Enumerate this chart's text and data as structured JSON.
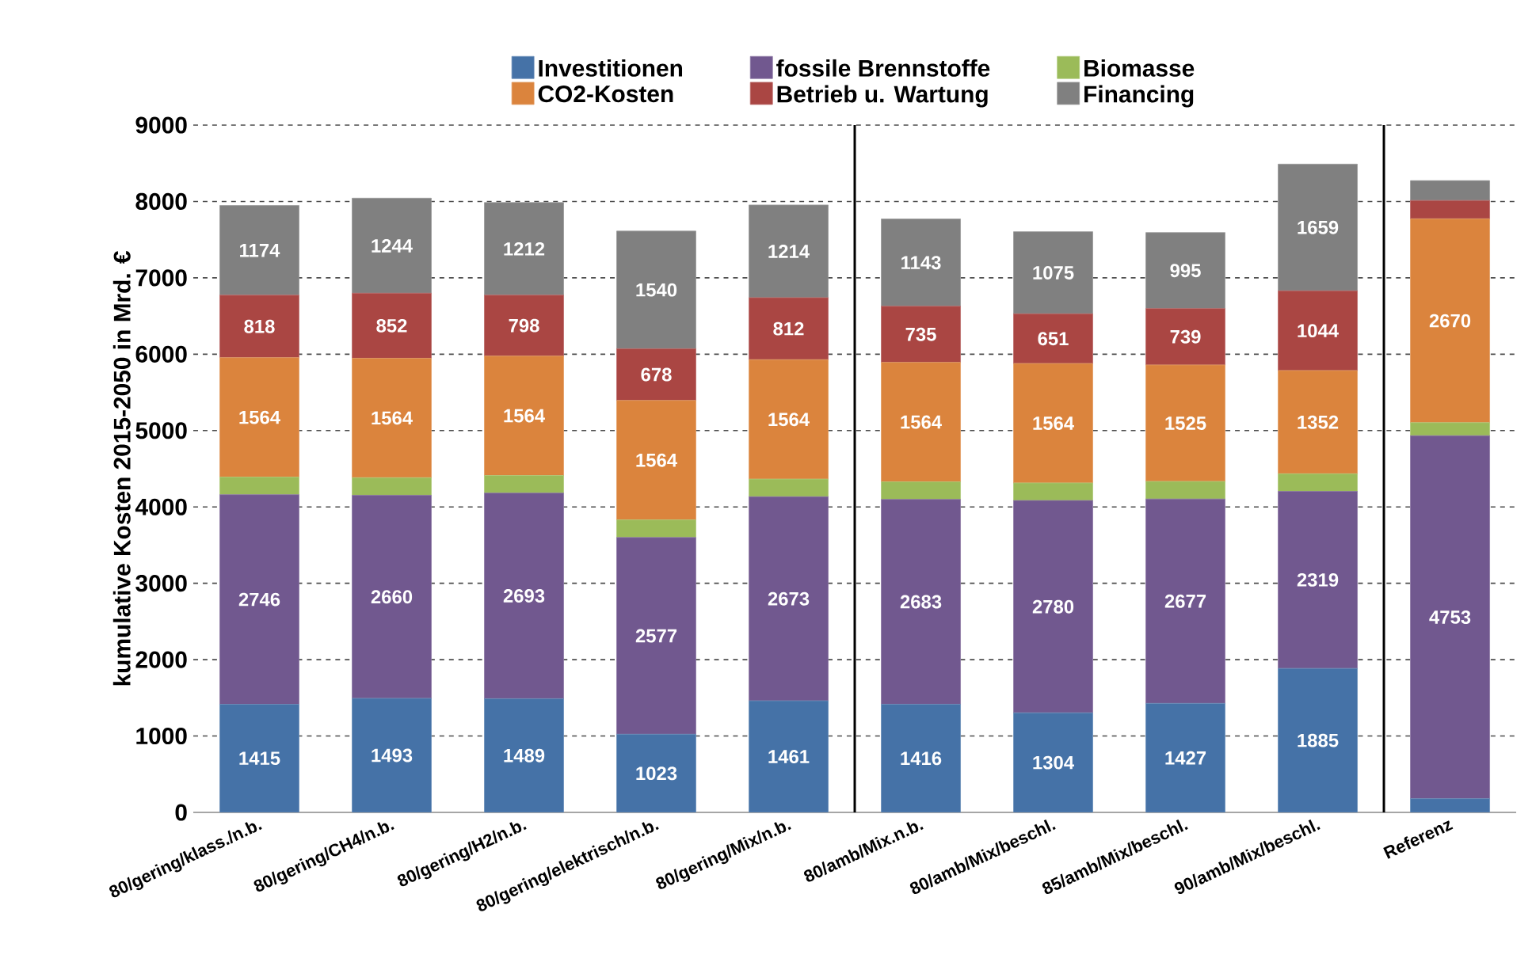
{
  "chart_data": {
    "type": "bar",
    "stacked": true,
    "categories": [
      "80/gering/klass./n.b.",
      "80/gering/CH4/n.b.",
      "80/gering/H2/n.b.",
      "80/gering/elektrisch/n.b.",
      "80/gering/Mix/n.b.",
      "80/amb/Mix.n.b.",
      "80/amb/Mix/beschl.",
      "85/amb/Mix/beschl.",
      "90/amb/Mix/beschl.",
      "Referenz"
    ],
    "ylabel": "kumulative Kosten 2015-2050 in Mrd. €",
    "ylim": [
      0,
      9000
    ],
    "yticks": [
      0,
      1000,
      2000,
      3000,
      4000,
      5000,
      6000,
      7000,
      8000,
      9000
    ],
    "grid": "y",
    "legend": "top",
    "series": [
      {
        "name": "Investitionen",
        "color": "#4572a7",
        "values": [
          1415,
          1493,
          1489,
          1023,
          1461,
          1416,
          1304,
          1427,
          1885,
          180
        ],
        "value_labels": [
          "1415",
          "1493",
          "1489",
          "1023",
          "1461",
          "1416",
          "1304",
          "1427",
          "1885",
          null
        ]
      },
      {
        "name": "fossile Brennstoffe",
        "color": "#71588f",
        "values": [
          2746,
          2660,
          2693,
          2577,
          2673,
          2683,
          2780,
          2677,
          2319,
          4753
        ],
        "value_labels": [
          "2746",
          "2660",
          "2693",
          "2577",
          "2673",
          "2683",
          "2780",
          "2677",
          "2319",
          "4753"
        ]
      },
      {
        "name": "Biomasse",
        "color": "#9bbb59",
        "values": [
          230,
          230,
          230,
          230,
          230,
          230,
          230,
          230,
          230,
          170
        ]
      },
      {
        "name": "CO2-Kosten",
        "color": "#db843d",
        "values": [
          1564,
          1564,
          1564,
          1564,
          1564,
          1564,
          1564,
          1525,
          1352,
          2670
        ],
        "value_labels": [
          "1564",
          "1564",
          "1564",
          "1564",
          "1564",
          "1564",
          "1564",
          "1525",
          "1352",
          "2670"
        ]
      },
      {
        "name": "Betrieb u. Wartung",
        "color": "#aa4643",
        "values": [
          818,
          852,
          798,
          678,
          812,
          735,
          651,
          739,
          1044,
          240
        ],
        "value_labels": [
          "818",
          "852",
          "798",
          "678",
          "812",
          "735",
          "651",
          "739",
          "1044",
          null
        ]
      },
      {
        "name": "Financing",
        "color": "#808080",
        "values": [
          1174,
          1244,
          1212,
          1540,
          1214,
          1143,
          1075,
          995,
          1659,
          260
        ],
        "value_labels": [
          "1174",
          "1244",
          "1212",
          "1540",
          "1214",
          "1143",
          "1075",
          "995",
          "1659",
          null
        ]
      }
    ]
  }
}
